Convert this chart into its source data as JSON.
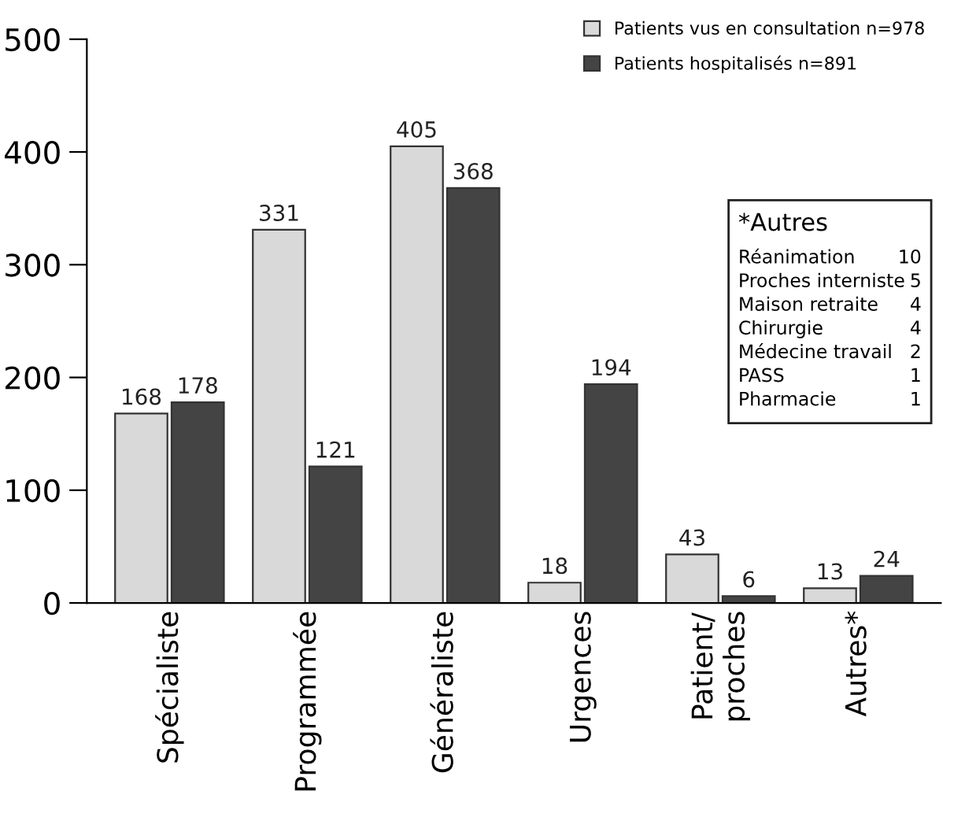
{
  "chart_data": {
    "type": "bar",
    "categories": [
      "Spécialiste",
      "Programmée",
      "Généraliste",
      "Urgences",
      "Patient/\nproches",
      "Autres*"
    ],
    "series": [
      {
        "name": "Patients vus en consultation n=978",
        "color": "#d9d9d9",
        "values": [
          168,
          331,
          405,
          18,
          43,
          13
        ]
      },
      {
        "name": "Patients hospitalisés n=891",
        "color": "#444444",
        "values": [
          178,
          121,
          368,
          194,
          6,
          24
        ]
      }
    ],
    "ylim": [
      0,
      500
    ],
    "yticks": [
      0,
      100,
      200,
      300,
      400,
      500
    ],
    "data_labels": true,
    "grid": false,
    "legend": "top right",
    "annotations": [
      "*Autres",
      "Réanimation",
      "10",
      "Proches interniste",
      "5",
      "Maison retraite",
      "4",
      "Chirurgie",
      "4",
      "Médecine travail",
      "2",
      "PASS",
      "1",
      "Pharmacie",
      "1"
    ]
  }
}
